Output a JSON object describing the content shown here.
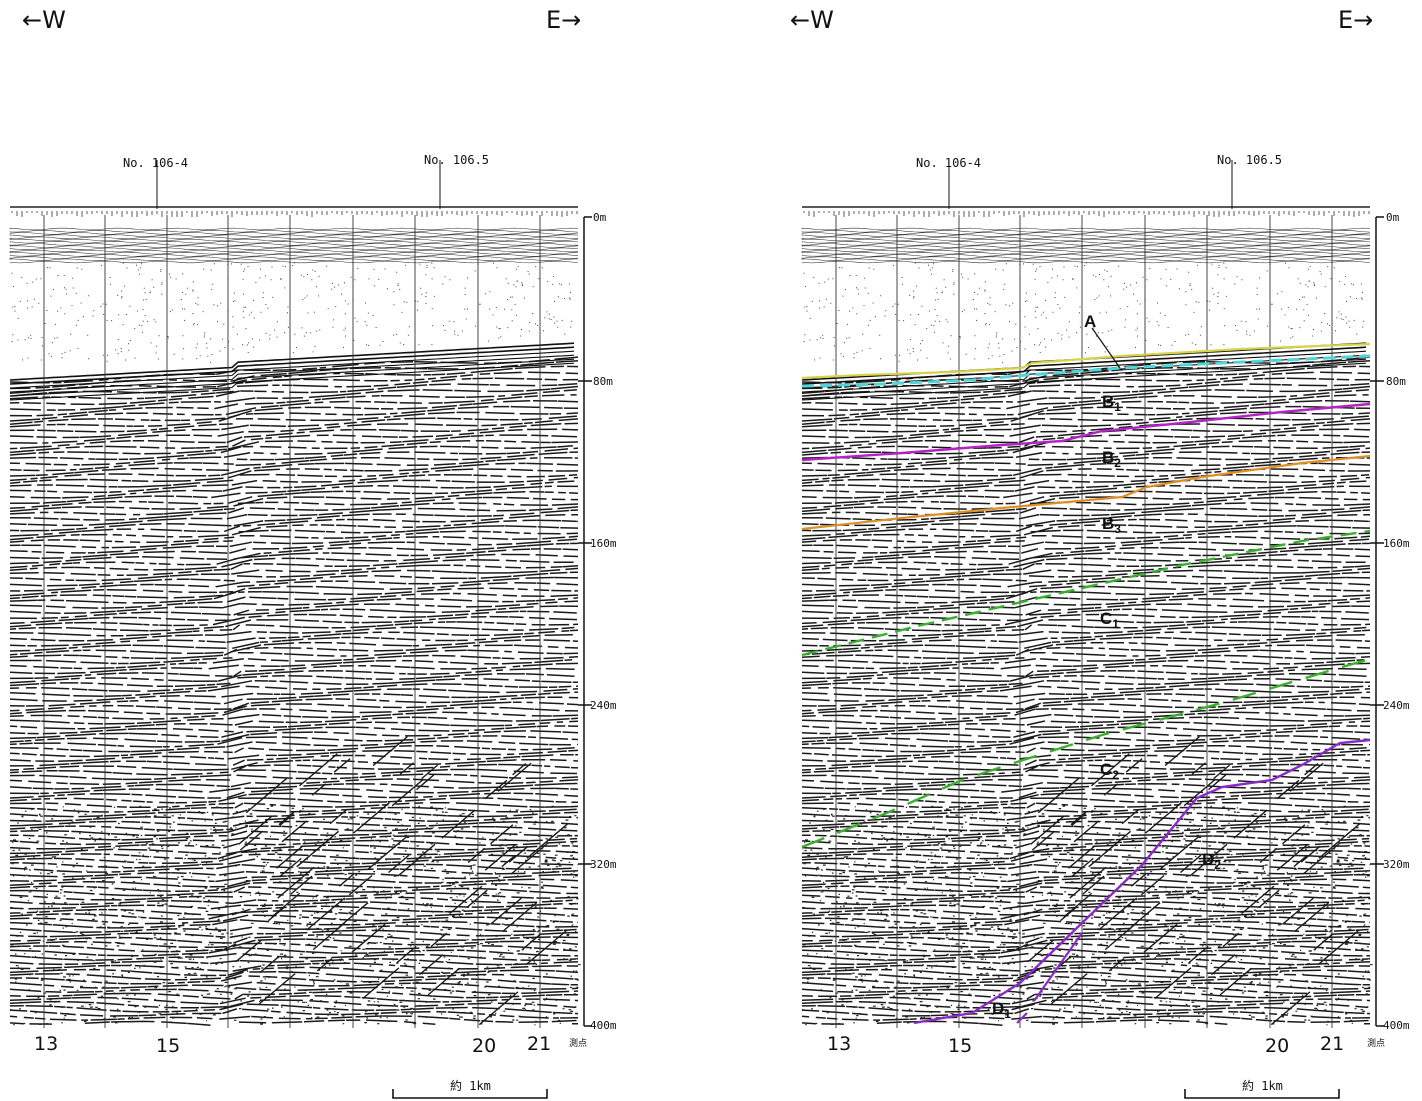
{
  "directions": {
    "west": "←W",
    "east": "E→"
  },
  "stations": {
    "a": "No. 106-4",
    "b": "No. 106.5"
  },
  "depth_ticks": [
    "0m",
    "80m",
    "160m",
    "240m",
    "320m",
    "400m"
  ],
  "bottom_numbers": [
    "13",
    "15",
    "20",
    "21"
  ],
  "survey_point_label": "測点",
  "scale_label": "約 1km",
  "units": [
    "A",
    "B1",
    "B2",
    "B3",
    "C1",
    "C2",
    "D1",
    "D2"
  ],
  "colors": {
    "A_top": "#d8d24a",
    "A_base": "#4fd6d8",
    "B1_B2": "#b522c8",
    "B2_B3": "#e08f25",
    "C": "#3bb02f",
    "D": "#8a2bc9"
  }
}
